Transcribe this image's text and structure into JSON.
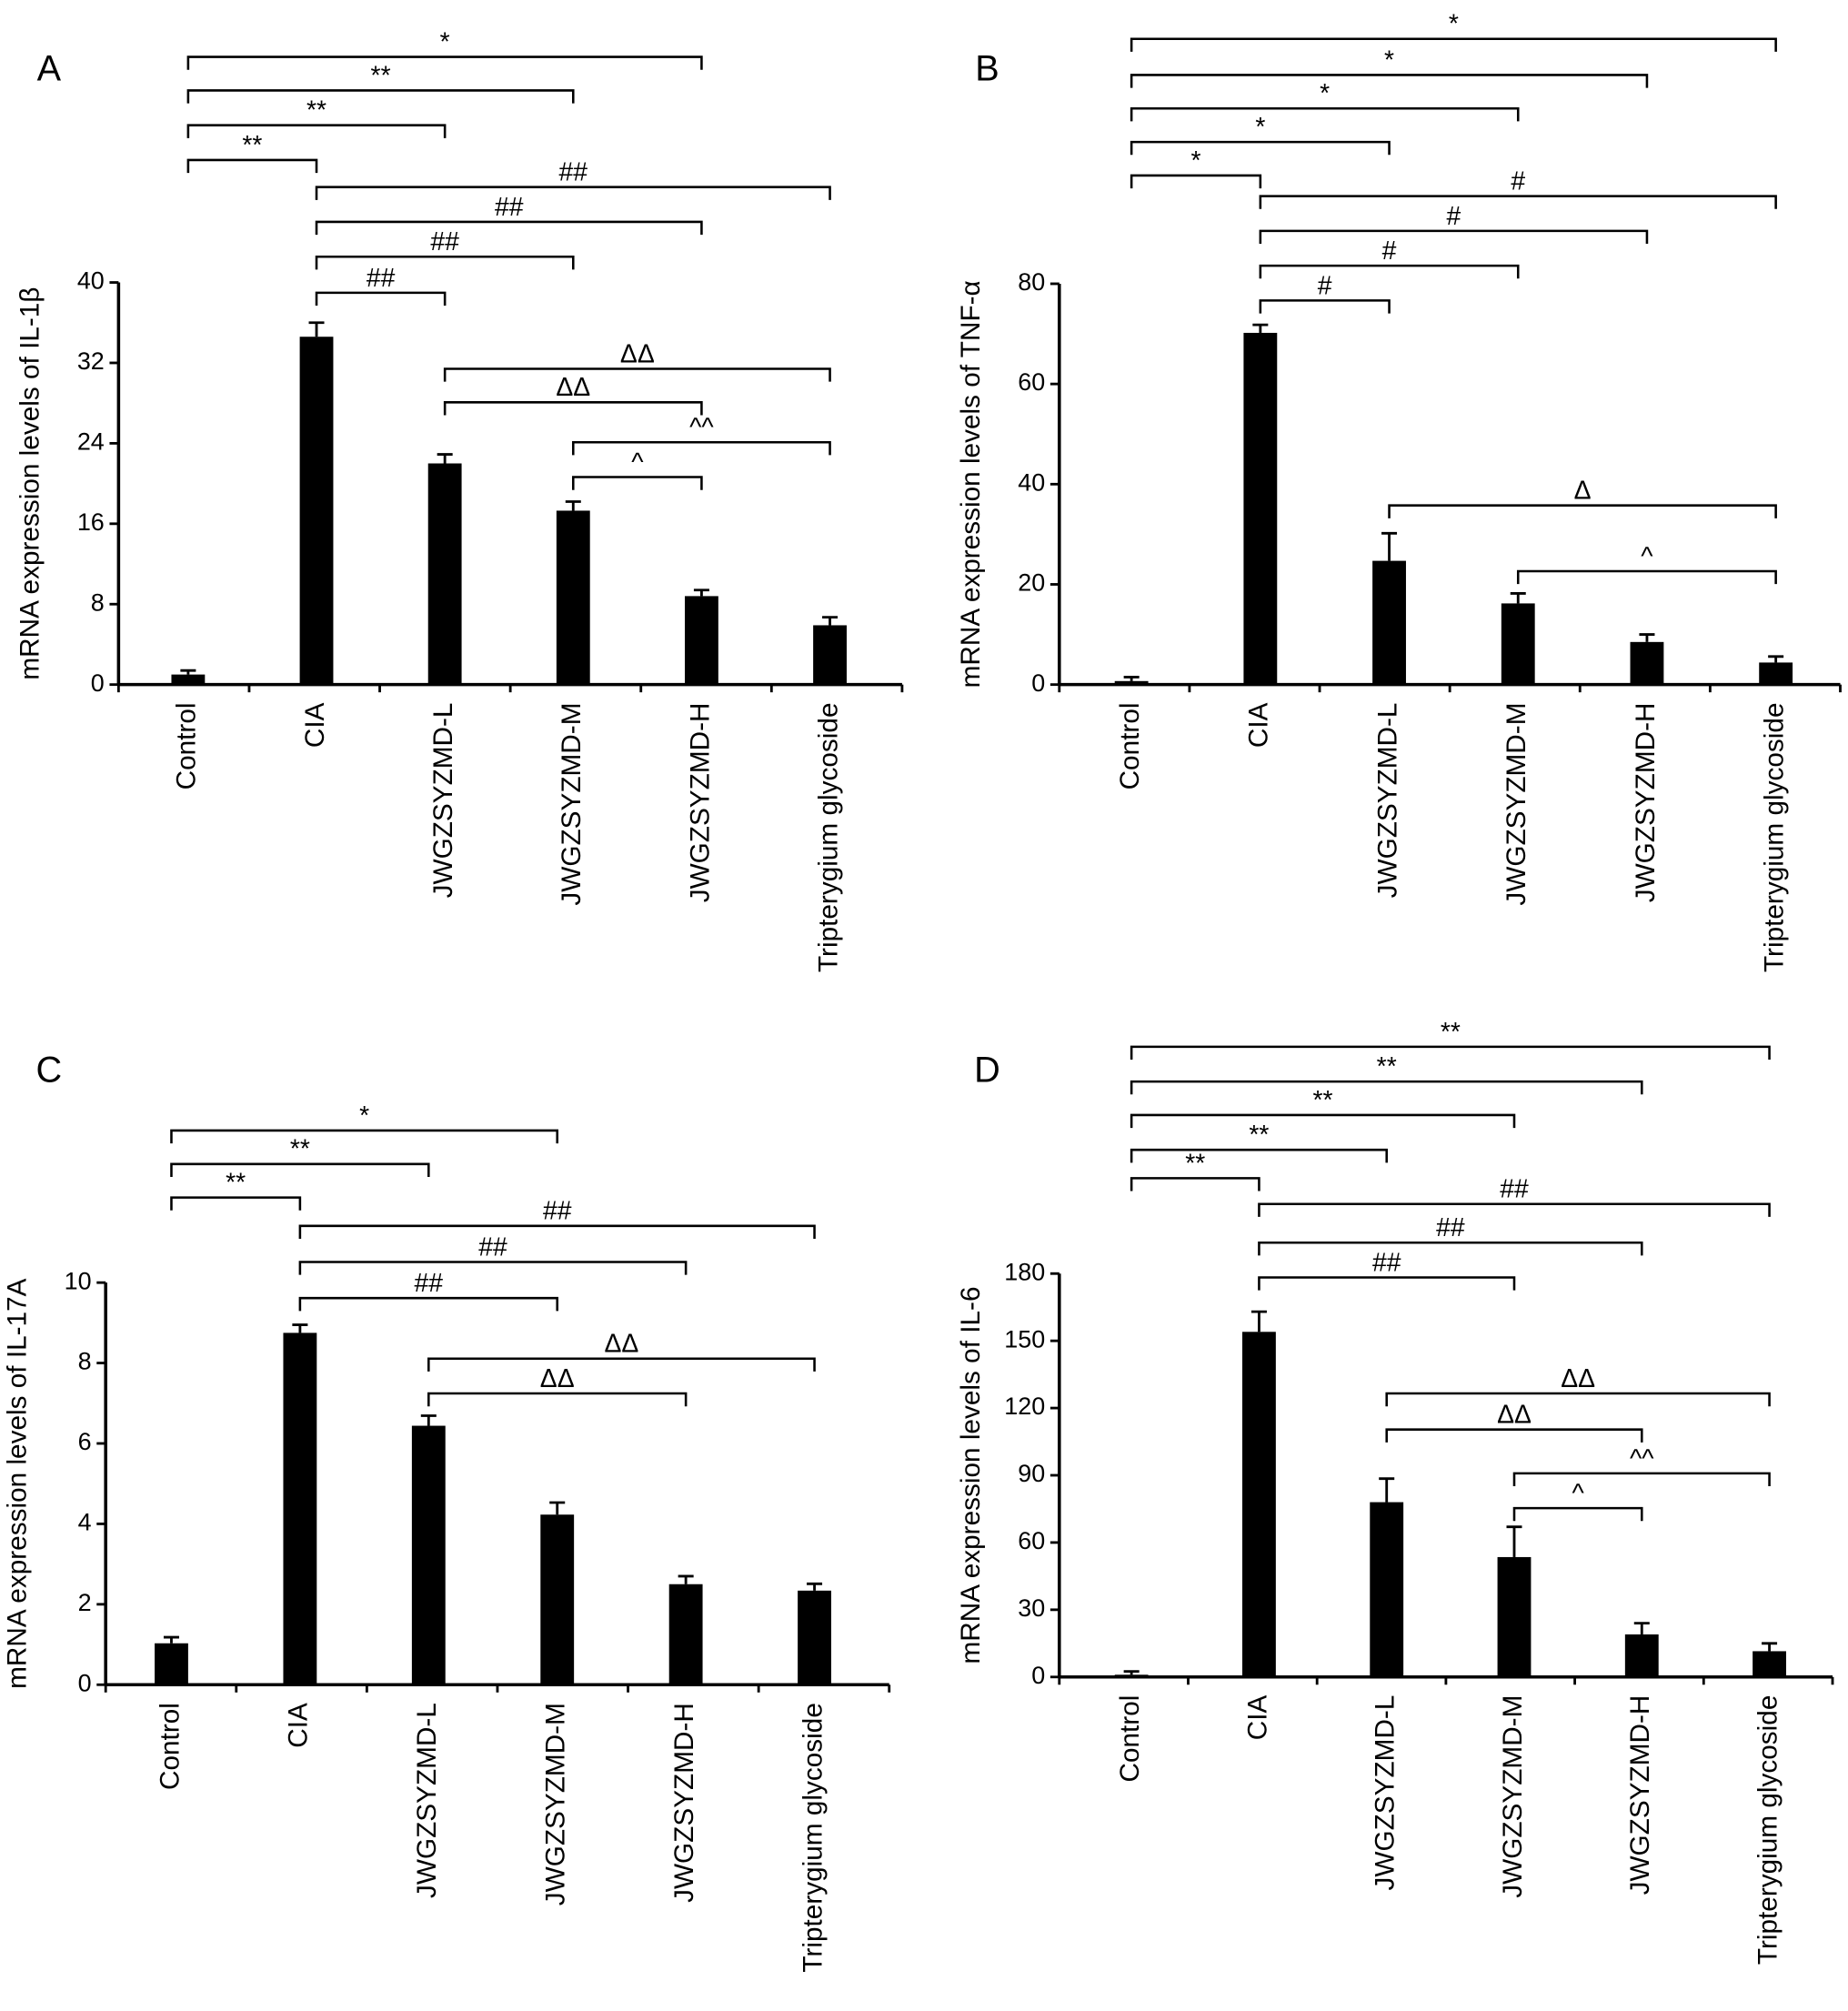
{
  "chart_data": [
    {
      "type": "bar",
      "panel": "A",
      "ylabel": "mRNA expression levels of IL-1β",
      "color": "#000000",
      "categories": [
        "Control",
        "CIA",
        "JWGZSYZMD-L",
        "JWGZSYZMD-M",
        "JWGZSYZMD-H",
        "Tripterygium glycoside"
      ],
      "values": [
        1.0,
        34.6,
        22.0,
        17.3,
        8.8,
        5.9
      ],
      "errors": [
        0.4,
        1.4,
        0.9,
        0.9,
        0.6,
        0.8
      ],
      "ylim": [
        0,
        40
      ],
      "yticks": [
        0,
        8,
        16,
        24,
        32,
        40
      ],
      "brackets": [
        {
          "label": "*",
          "from": "Control",
          "to": "JWGZSYZMD-H"
        },
        {
          "label": "**",
          "from": "Control",
          "to": "JWGZSYZMD-M"
        },
        {
          "label": "**",
          "from": "Control",
          "to": "JWGZSYZMD-L"
        },
        {
          "label": "**",
          "from": "Control",
          "to": "CIA"
        },
        {
          "label": "##",
          "from": "CIA",
          "to": "Tripterygium glycoside"
        },
        {
          "label": "##",
          "from": "CIA",
          "to": "JWGZSYZMD-H"
        },
        {
          "label": "##",
          "from": "CIA",
          "to": "JWGZSYZMD-M"
        },
        {
          "label": "##",
          "from": "CIA",
          "to": "JWGZSYZMD-L"
        },
        {
          "label": "ΔΔ",
          "from": "JWGZSYZMD-L",
          "to": "Tripterygium glycoside"
        },
        {
          "label": "ΔΔ",
          "from": "JWGZSYZMD-L",
          "to": "JWGZSYZMD-H"
        },
        {
          "label": "^^",
          "from": "JWGZSYZMD-M",
          "to": "Tripterygium glycoside"
        },
        {
          "label": "^",
          "from": "JWGZSYZMD-M",
          "to": "JWGZSYZMD-H"
        }
      ]
    },
    {
      "type": "bar",
      "panel": "B",
      "ylabel": "mRNA expression levels of TNF-α",
      "color": "#000000",
      "categories": [
        "Control",
        "CIA",
        "JWGZSYZMD-L",
        "JWGZSYZMD-M",
        "JWGZSYZMD-H",
        "Tripterygium glycoside"
      ],
      "values": [
        0.7,
        70.2,
        24.7,
        16.2,
        8.5,
        4.4
      ],
      "errors": [
        0.8,
        1.6,
        5.5,
        2.0,
        1.5,
        1.2
      ],
      "ylim": [
        0,
        80
      ],
      "yticks": [
        0,
        20,
        40,
        60,
        80
      ],
      "brackets": [
        {
          "label": "*",
          "from": "Control",
          "to": "Tripterygium glycoside"
        },
        {
          "label": "*",
          "from": "Control",
          "to": "JWGZSYZMD-H"
        },
        {
          "label": "*",
          "from": "Control",
          "to": "JWGZSYZMD-M"
        },
        {
          "label": "*",
          "from": "Control",
          "to": "JWGZSYZMD-L"
        },
        {
          "label": "*",
          "from": "Control",
          "to": "CIA"
        },
        {
          "label": "#",
          "from": "CIA",
          "to": "Tripterygium glycoside"
        },
        {
          "label": "#",
          "from": "CIA",
          "to": "JWGZSYZMD-H"
        },
        {
          "label": "#",
          "from": "CIA",
          "to": "JWGZSYZMD-M"
        },
        {
          "label": "#",
          "from": "CIA",
          "to": "JWGZSYZMD-L"
        },
        {
          "label": "Δ",
          "from": "JWGZSYZMD-L",
          "to": "Tripterygium glycoside"
        },
        {
          "label": "^",
          "from": "JWGZSYZMD-M",
          "to": "Tripterygium glycoside"
        }
      ]
    },
    {
      "type": "bar",
      "panel": "C",
      "ylabel": "mRNA expression levels of IL-17A",
      "color": "#000000",
      "categories": [
        "Control",
        "CIA",
        "JWGZSYZMD-L",
        "JWGZSYZMD-M",
        "JWGZSYZMD-H",
        "Tripterygium glycoside"
      ],
      "values": [
        1.03,
        8.75,
        6.44,
        4.23,
        2.5,
        2.34
      ],
      "errors": [
        0.15,
        0.2,
        0.25,
        0.3,
        0.2,
        0.17
      ],
      "ylim": [
        0,
        10
      ],
      "yticks": [
        0,
        2,
        4,
        6,
        8,
        10
      ],
      "brackets": [
        {
          "label": "*",
          "from": "Control",
          "to": "JWGZSYZMD-M"
        },
        {
          "label": "**",
          "from": "Control",
          "to": "JWGZSYZMD-L"
        },
        {
          "label": "**",
          "from": "Control",
          "to": "CIA"
        },
        {
          "label": "##",
          "from": "CIA",
          "to": "Tripterygium glycoside"
        },
        {
          "label": "##",
          "from": "CIA",
          "to": "JWGZSYZMD-H"
        },
        {
          "label": "##",
          "from": "CIA",
          "to": "JWGZSYZMD-M"
        },
        {
          "label": "ΔΔ",
          "from": "JWGZSYZMD-L",
          "to": "Tripterygium glycoside"
        },
        {
          "label": "ΔΔ",
          "from": "JWGZSYZMD-L",
          "to": "JWGZSYZMD-H"
        }
      ]
    },
    {
      "type": "bar",
      "panel": "D",
      "ylabel": "mRNA expression levels of IL-6",
      "color": "#000000",
      "categories": [
        "Control",
        "CIA",
        "JWGZSYZMD-L",
        "JWGZSYZMD-M",
        "JWGZSYZMD-H",
        "Tripterygium glycoside"
      ],
      "values": [
        1,
        154,
        78,
        53.5,
        19,
        11.5
      ],
      "errors": [
        1.5,
        9,
        10.5,
        13.5,
        5,
        3.5
      ],
      "ylim": [
        0,
        180
      ],
      "yticks": [
        0,
        30,
        60,
        90,
        120,
        150,
        180
      ],
      "brackets": [
        {
          "label": "**",
          "from": "Control",
          "to": "Tripterygium glycoside"
        },
        {
          "label": "**",
          "from": "Control",
          "to": "JWGZSYZMD-H"
        },
        {
          "label": "**",
          "from": "Control",
          "to": "JWGZSYZMD-M"
        },
        {
          "label": "**",
          "from": "Control",
          "to": "JWGZSYZMD-L"
        },
        {
          "label": "**",
          "from": "Control",
          "to": "CIA"
        },
        {
          "label": "##",
          "from": "CIA",
          "to": "Tripterygium glycoside"
        },
        {
          "label": "##",
          "from": "CIA",
          "to": "JWGZSYZMD-H"
        },
        {
          "label": "##",
          "from": "CIA",
          "to": "JWGZSYZMD-M"
        },
        {
          "label": "ΔΔ",
          "from": "JWGZSYZMD-L",
          "to": "Tripterygium glycoside"
        },
        {
          "label": "ΔΔ",
          "from": "JWGZSYZMD-L",
          "to": "JWGZSYZMD-H"
        },
        {
          "label": "^^",
          "from": "JWGZSYZMD-M",
          "to": "Tripterygium glycoside"
        },
        {
          "label": "^",
          "from": "JWGZSYZMD-M",
          "to": "JWGZSYZMD-H"
        }
      ]
    }
  ]
}
